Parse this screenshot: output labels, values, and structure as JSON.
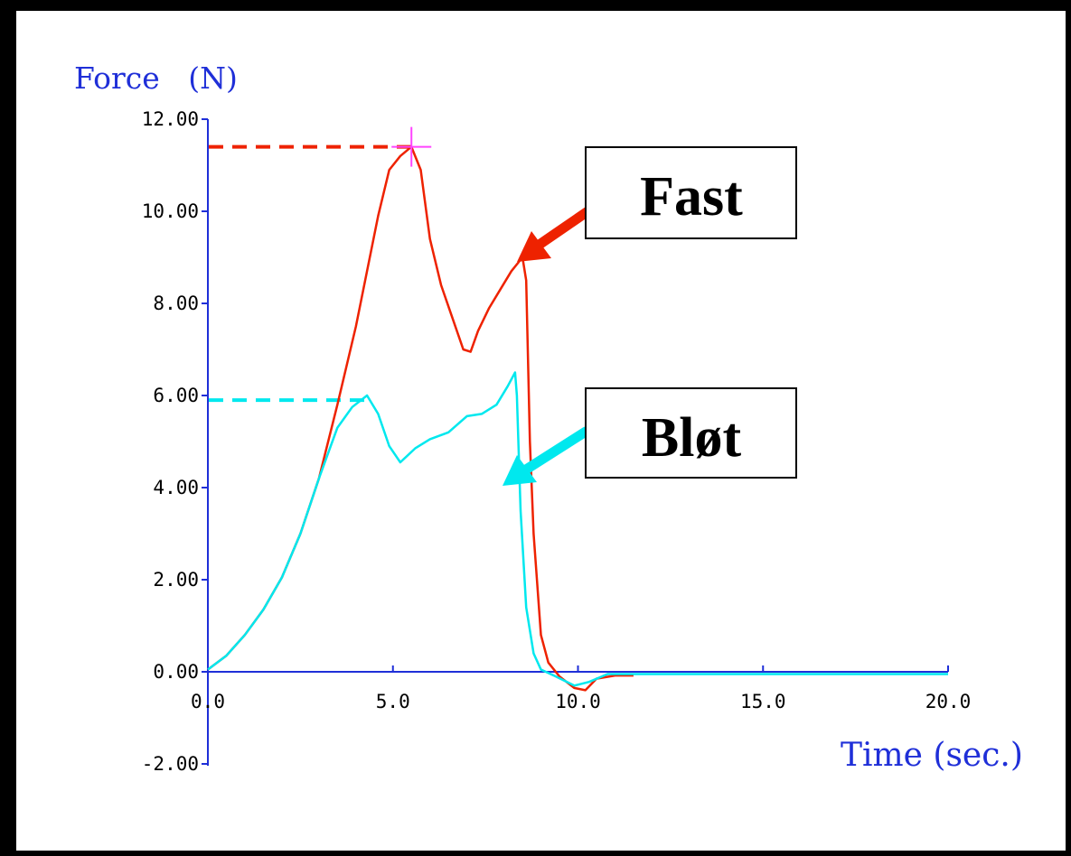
{
  "chart_data": {
    "type": "line",
    "ylabel": "Force   (N)",
    "xlabel": "Time (sec.)",
    "xlim": [
      0,
      20
    ],
    "ylim": [
      -2,
      12
    ],
    "x_ticks": [
      "0.0",
      "5.0",
      "10.0",
      "15.0",
      "20.0"
    ],
    "y_ticks": [
      "12.00",
      "10.00",
      "8.00",
      "6.00",
      "4.00",
      "2.00",
      "0.00",
      "-2.00"
    ],
    "grid": false,
    "series": [
      {
        "name": "Fast",
        "color": "#ee2200",
        "peak_marker": {
          "x": 5.5,
          "y": 11.4,
          "color": "#ff44ff"
        },
        "reference_y": 11.4,
        "x": [
          0.0,
          0.5,
          1.0,
          1.5,
          2.0,
          2.5,
          3.0,
          3.5,
          4.0,
          4.3,
          4.6,
          4.9,
          5.2,
          5.5,
          5.75,
          6.0,
          6.3,
          6.6,
          6.9,
          7.1,
          7.3,
          7.6,
          7.9,
          8.2,
          8.5,
          8.6,
          8.7,
          8.8,
          9.0,
          9.2,
          9.5,
          9.9,
          10.2,
          10.5,
          11.0,
          11.5
        ],
        "y": [
          0.05,
          0.35,
          0.8,
          1.35,
          2.05,
          3.0,
          4.2,
          5.8,
          7.5,
          8.7,
          9.9,
          10.9,
          11.2,
          11.4,
          10.9,
          9.4,
          8.4,
          7.7,
          7.0,
          6.95,
          7.4,
          7.9,
          8.3,
          8.7,
          9.0,
          8.5,
          5.0,
          3.0,
          0.8,
          0.2,
          -0.1,
          -0.35,
          -0.4,
          -0.15,
          -0.08,
          -0.08
        ]
      },
      {
        "name": "Bløt",
        "color": "#00e8ee",
        "reference_y": 5.9,
        "x": [
          0.0,
          0.5,
          1.0,
          1.5,
          2.0,
          2.5,
          3.0,
          3.5,
          3.9,
          4.3,
          4.6,
          4.9,
          5.2,
          5.6,
          6.0,
          6.5,
          7.0,
          7.4,
          7.8,
          8.1,
          8.3,
          8.35,
          8.45,
          8.6,
          8.8,
          9.0,
          9.4,
          9.9,
          10.3,
          10.8,
          11.5,
          15.0,
          20.0
        ],
        "y": [
          0.05,
          0.35,
          0.8,
          1.35,
          2.05,
          3.0,
          4.2,
          5.3,
          5.75,
          6.0,
          5.6,
          4.9,
          4.55,
          4.85,
          5.05,
          5.2,
          5.55,
          5.6,
          5.8,
          6.2,
          6.5,
          6.0,
          3.5,
          1.4,
          0.4,
          0.05,
          -0.1,
          -0.3,
          -0.22,
          -0.05,
          -0.05,
          -0.05,
          -0.05
        ]
      }
    ],
    "annotations": [
      "Fast",
      "Bløt"
    ]
  }
}
